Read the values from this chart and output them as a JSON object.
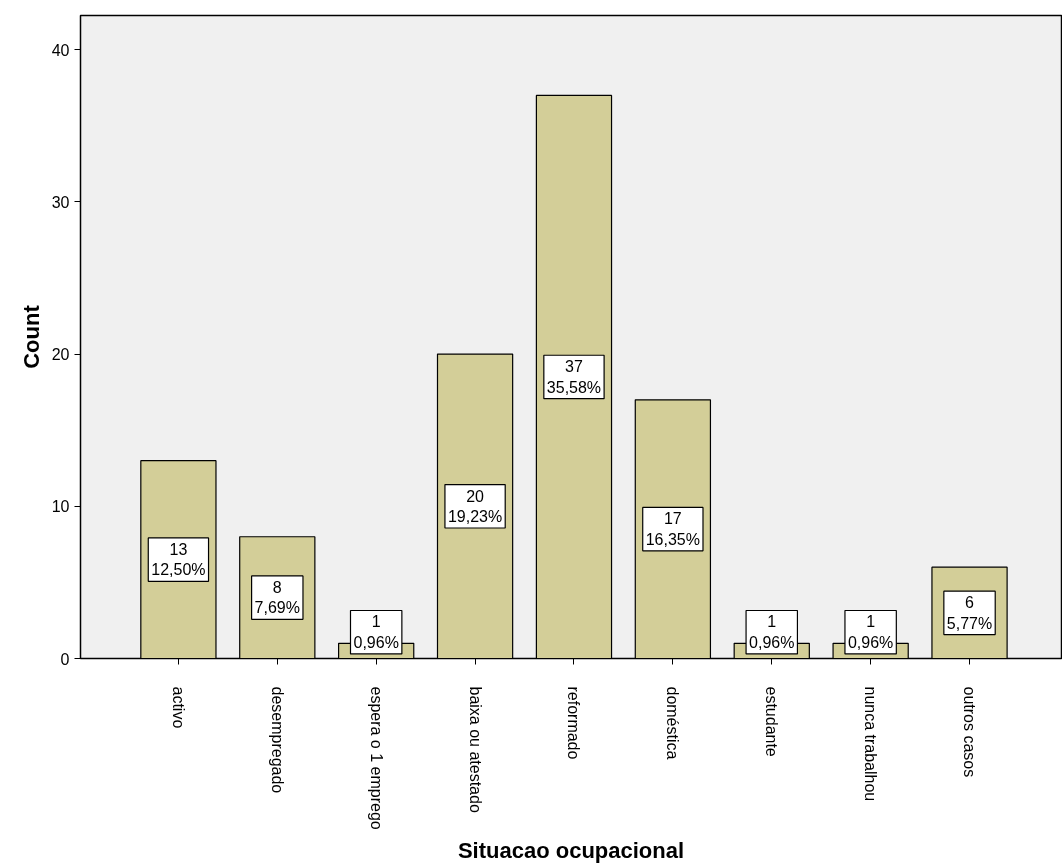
{
  "chart_data": {
    "type": "bar",
    "xlabel": "Situacao ocupacional",
    "ylabel": "Count",
    "categories": [
      "activo",
      "desempregado",
      "espera o 1 emprego",
      "baixa ou atestado",
      "reformado",
      "doméstica",
      "estudante",
      "nunca trabalhou",
      "outros casos"
    ],
    "values": [
      13,
      8,
      1,
      20,
      37,
      17,
      1,
      1,
      6
    ],
    "value_labels": [
      "13\n12,50%",
      "8\n7,69%",
      "1\n0,96%",
      "20\n19,23%",
      "37\n35,58%",
      "17\n16,35%",
      "1\n0,96%",
      "1\n0,96%",
      "6\n5,77%"
    ],
    "color": "#d3ce98",
    "ylim": [
      0,
      42.25
    ],
    "yticks": [
      0,
      10,
      20,
      30,
      40
    ],
    "grid": false
  }
}
